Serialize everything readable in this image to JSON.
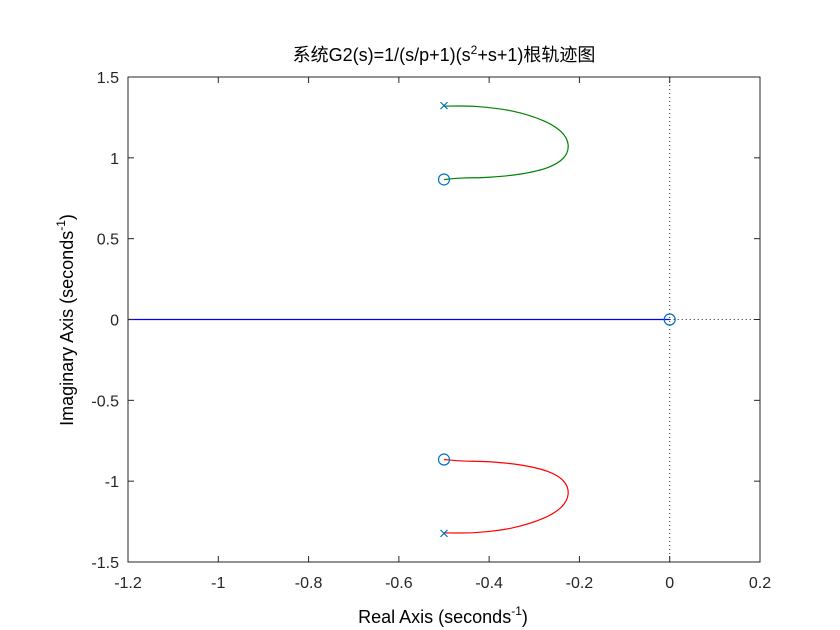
{
  "chart_data": {
    "type": "line",
    "title": {
      "prefix": "系统G2(s)=1/(s/p+1)(s",
      "sup": "2",
      "suffix": "+s+1)根轨迹图"
    },
    "xlabel": {
      "main": "Real Axis (seconds",
      "sup": "-1",
      "end": ")"
    },
    "ylabel": {
      "main": "Imaginary Axis (seconds",
      "sup": "-1",
      "end": ")"
    },
    "xlim": [
      -1.2,
      0.2
    ],
    "ylim": [
      -1.5,
      1.5
    ],
    "xticks": [
      -1.2,
      -1,
      -0.8,
      -0.6,
      -0.4,
      -0.2,
      0,
      0.2
    ],
    "xtick_labels": [
      "-1.2",
      "-1",
      "-0.8",
      "-0.6",
      "-0.4",
      "-0.2",
      "0",
      "0.2"
    ],
    "yticks": [
      -1.5,
      -1,
      -0.5,
      0,
      0.5,
      1,
      1.5
    ],
    "ytick_labels": [
      "-1.5",
      "-1",
      "-0.5",
      "0",
      "0.5",
      "1",
      "1.5"
    ],
    "grid": false,
    "series": [
      {
        "color": "#0000ff",
        "x": [
          -1.2,
          0.0
        ],
        "y": [
          0.0,
          0.0
        ]
      },
      {
        "color": "#008000",
        "x": [
          -0.5,
          -0.43,
          -0.35,
          -0.28,
          -0.24,
          -0.225,
          -0.235,
          -0.27,
          -0.33,
          -0.4,
          -0.46,
          -0.5
        ],
        "y": [
          1.32,
          1.318,
          1.29,
          1.23,
          1.16,
          1.08,
          1.0,
          0.94,
          0.9,
          0.88,
          0.875,
          0.866
        ]
      },
      {
        "color": "#ff0000",
        "x": [
          -0.5,
          -0.43,
          -0.35,
          -0.28,
          -0.24,
          -0.225,
          -0.235,
          -0.27,
          -0.33,
          -0.4,
          -0.46,
          -0.5
        ],
        "y": [
          -1.32,
          -1.318,
          -1.29,
          -1.23,
          -1.16,
          -1.08,
          -1.0,
          -0.94,
          -0.9,
          -0.88,
          -0.875,
          -0.866
        ]
      }
    ],
    "poles": [
      [
        -0.5,
        1.323
      ],
      [
        -0.5,
        -1.323
      ]
    ],
    "zeros": [
      [
        -0.5,
        0.866
      ],
      [
        -0.5,
        -0.866
      ],
      [
        0.0,
        0.0
      ]
    ],
    "marker_color": "#0072bd",
    "reference_lines": [
      {
        "orientation": "vertical",
        "value": 0.0,
        "style": "dotted"
      },
      {
        "orientation": "horizontal",
        "value": 0.0,
        "from": 0.0,
        "to": 0.2,
        "style": "dotted"
      }
    ]
  }
}
